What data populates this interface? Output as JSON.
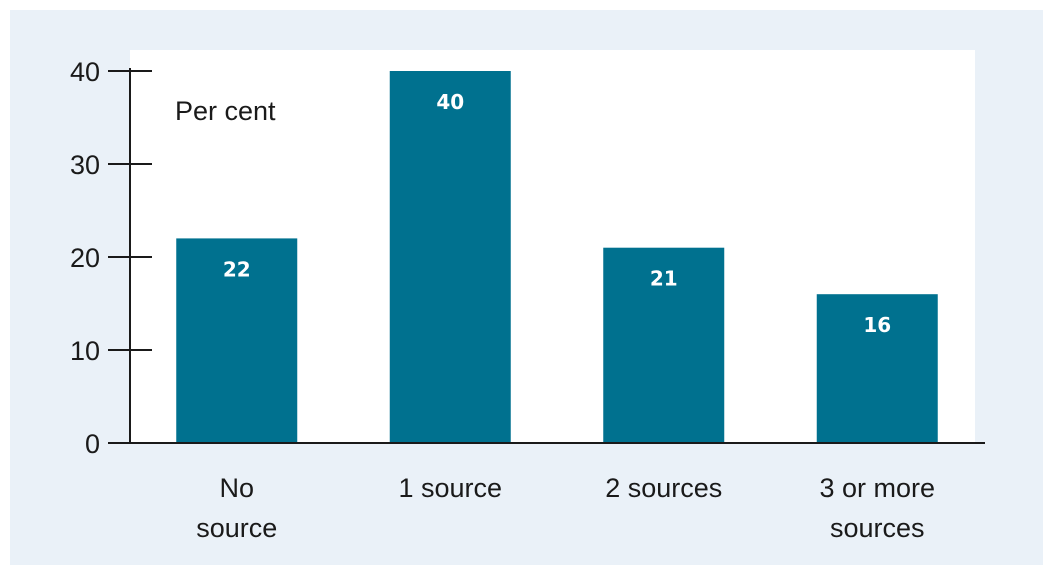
{
  "chart_data": {
    "type": "bar",
    "title": "",
    "ylabel": "Per cent",
    "xlabel": "",
    "categories": [
      [
        "No",
        "source"
      ],
      [
        "1 source"
      ],
      [
        "2 sources"
      ],
      [
        "3 or more",
        "sources"
      ]
    ],
    "values": [
      22,
      40,
      21,
      16
    ],
    "data_labels": [
      "22",
      "40",
      "21",
      "16"
    ],
    "ylim": [
      0,
      40
    ],
    "yticks": [
      "0",
      "10",
      "20",
      "30",
      "40"
    ],
    "grid": false,
    "bar_color": "#00718f",
    "plot_background": "#ffffff",
    "panel_background": "#eaf1f8"
  }
}
